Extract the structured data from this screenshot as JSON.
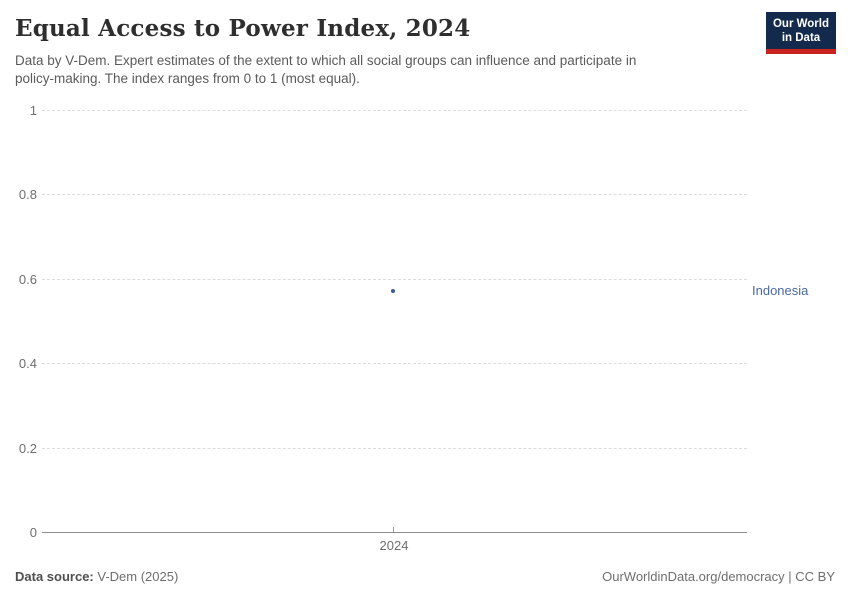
{
  "header": {
    "title": "Equal Access to Power Index, 2024",
    "subtitle_lines": [
      "Data by V-Dem. Expert estimates of the extent to which all social groups can influence and participate in",
      "policy-making. The index ranges from 0 to 1 (most equal)."
    ],
    "logo": {
      "line1": "Our World",
      "line2": "in Data",
      "bg_color": "#132a4d",
      "accent_color": "#c8231e"
    }
  },
  "chart_data": {
    "type": "scatter",
    "title": "Equal Access to Power Index, 2024",
    "x": [
      2024
    ],
    "series": [
      {
        "name": "Indonesia",
        "values": [
          0.57
        ],
        "color": "#3d5c9c",
        "label_color": "#4c6a9c"
      }
    ],
    "xlabel": "",
    "ylabel": "",
    "ylim": [
      0,
      1
    ],
    "yticks": [
      0,
      0.2,
      0.4,
      0.6,
      0.8,
      1
    ],
    "xtick_labels": [
      "2024"
    ],
    "grid": "horizontal-dashed",
    "gridline_color": "#dcdcdc",
    "axis_color": "#8c8c8c",
    "tick_label_color": "#6e6e6e",
    "legend": "entity-label-right"
  },
  "footer": {
    "source_label": "Data source:",
    "source_value": "V-Dem (2025)",
    "rights": "OurWorldinData.org/democracy | CC BY"
  }
}
